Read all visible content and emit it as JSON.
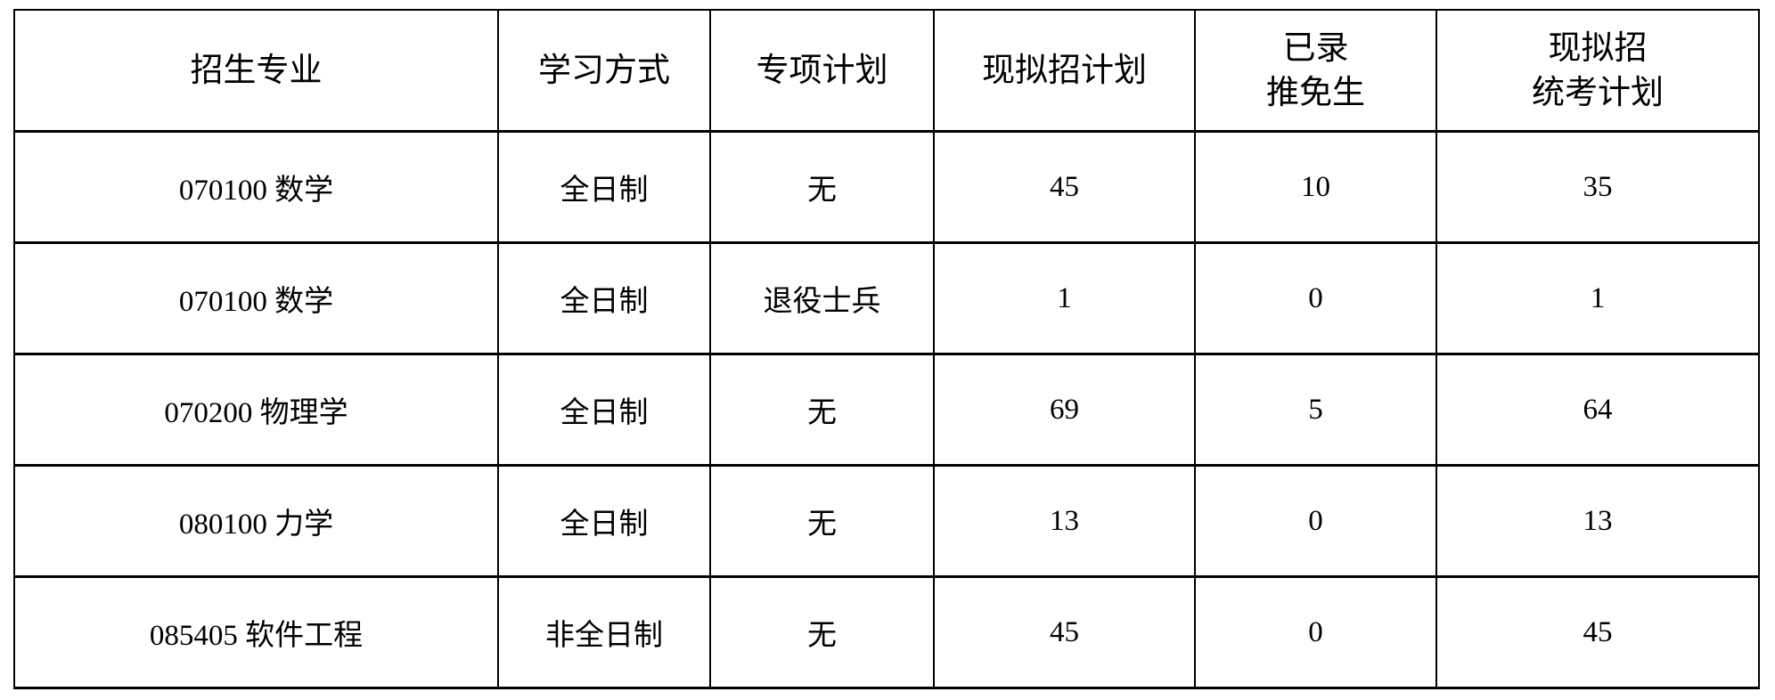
{
  "table": {
    "headers": [
      {
        "lines": [
          "招生专业"
        ]
      },
      {
        "lines": [
          "学习方式"
        ]
      },
      {
        "lines": [
          "专项计划"
        ]
      },
      {
        "lines": [
          "现拟招计划"
        ]
      },
      {
        "lines": [
          "已录",
          "推免生"
        ]
      },
      {
        "lines": [
          "现拟招",
          "统考计划"
        ]
      }
    ],
    "rows": [
      [
        "070100 数学",
        "全日制",
        "无",
        "45",
        "10",
        "35"
      ],
      [
        "070100 数学",
        "全日制",
        "退役士兵",
        "1",
        "0",
        "1"
      ],
      [
        "070200 物理学",
        "全日制",
        "无",
        "69",
        "5",
        "64"
      ],
      [
        "080100 力学",
        "全日制",
        "无",
        "13",
        "0",
        "13"
      ],
      [
        "085405 软件工程",
        "非全日制",
        "无",
        "45",
        "0",
        "45"
      ]
    ]
  }
}
